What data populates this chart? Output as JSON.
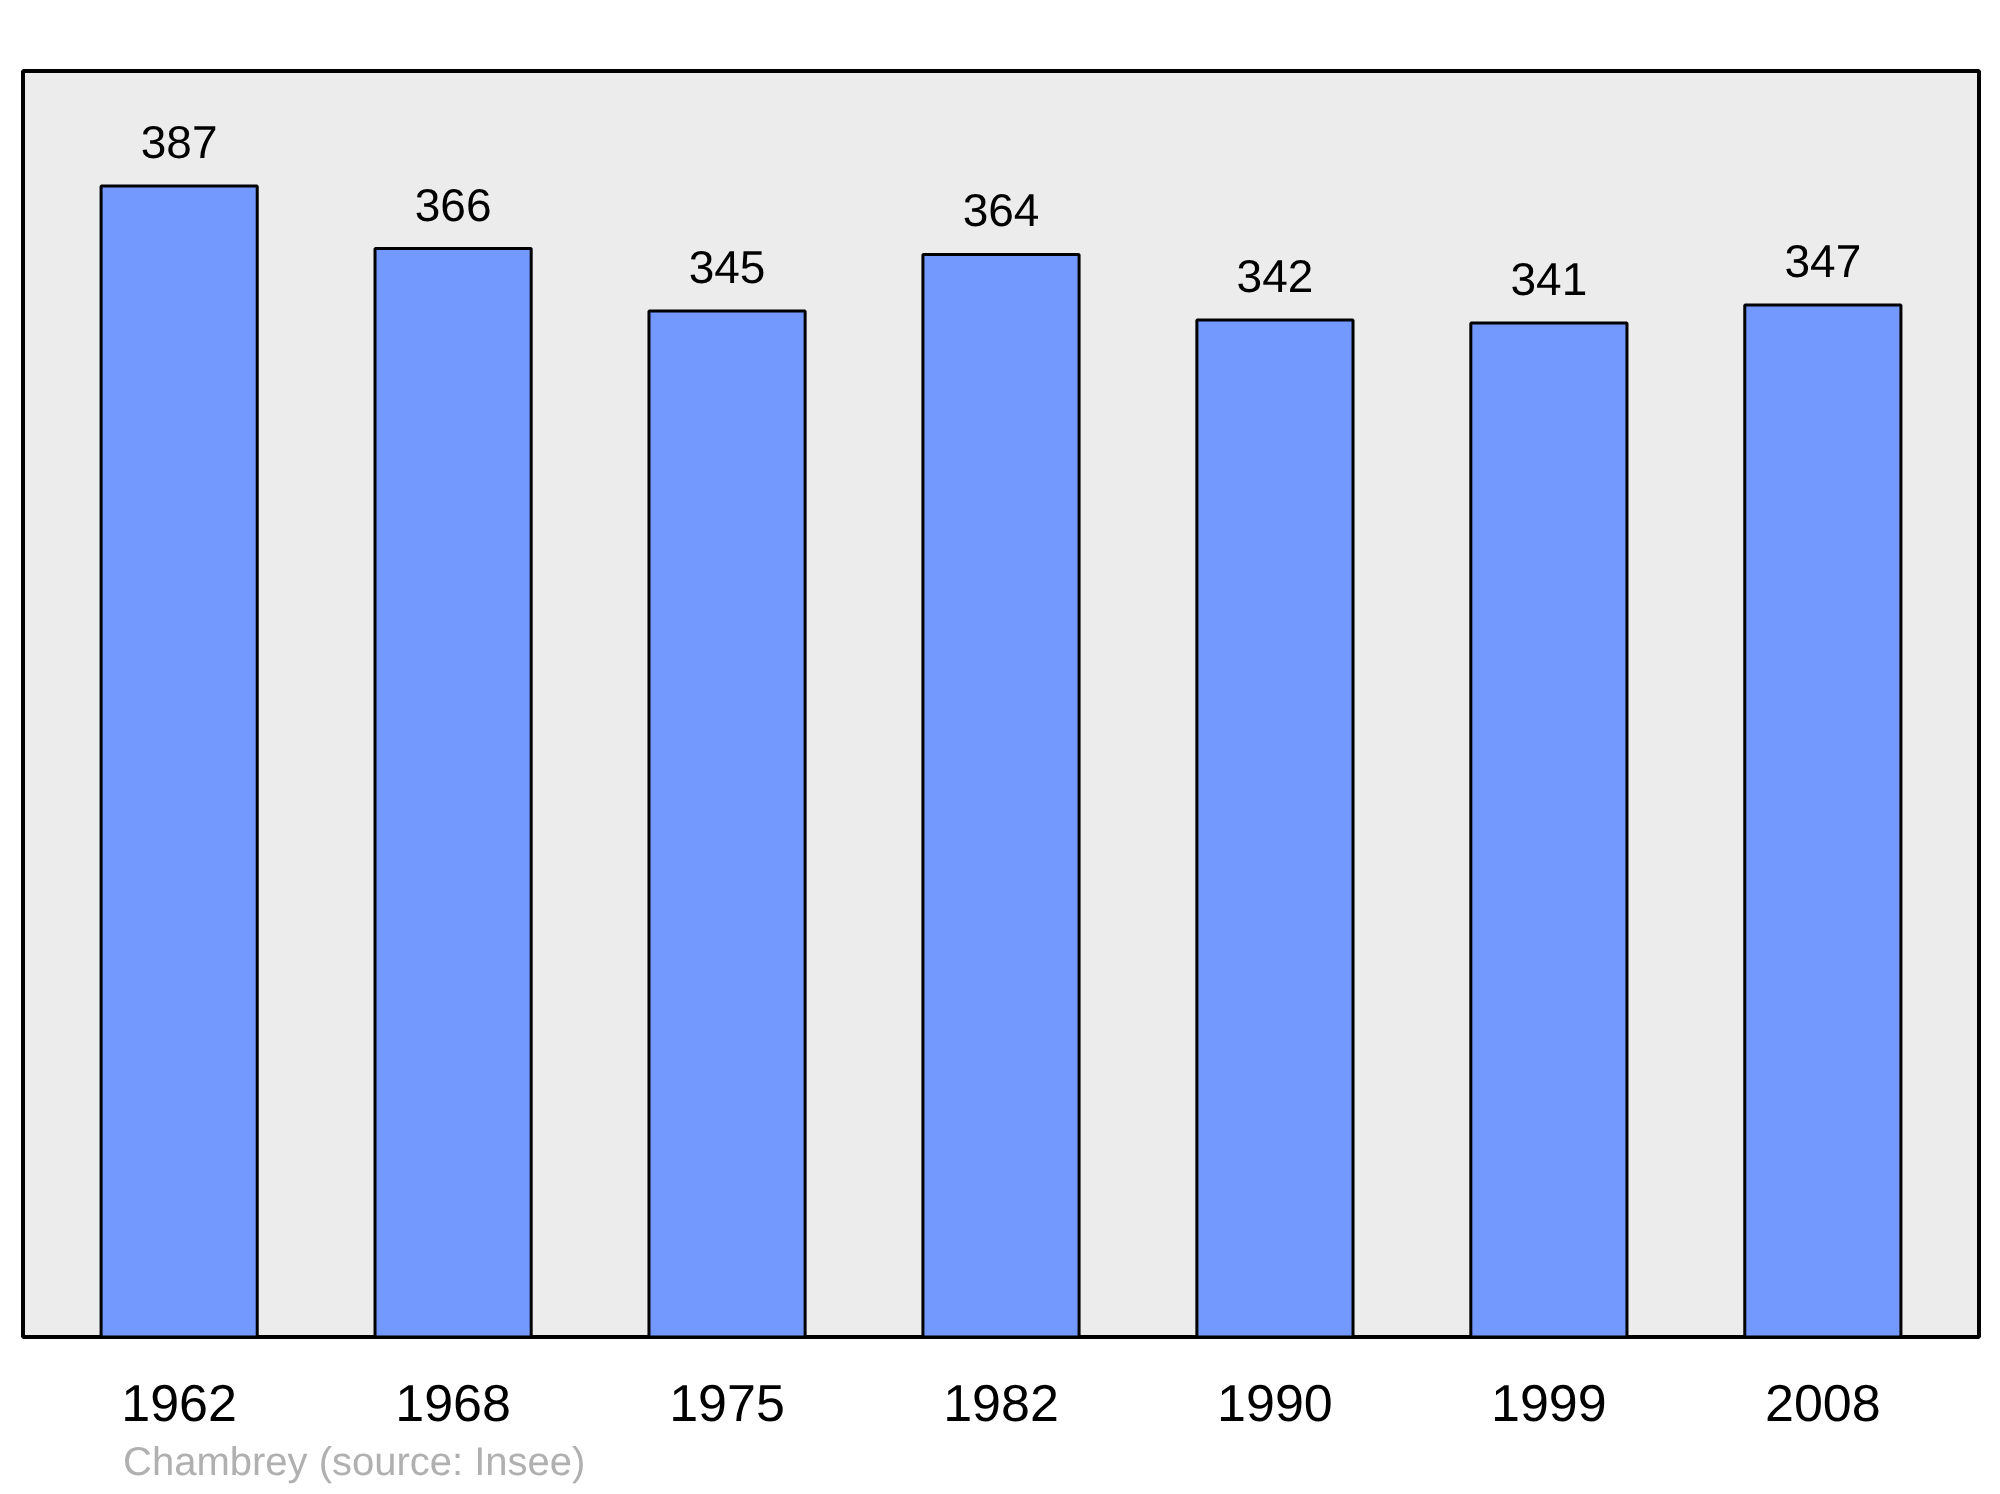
{
  "chart_data": {
    "type": "bar",
    "categories": [
      "1962",
      "1968",
      "1975",
      "1982",
      "1990",
      "1999",
      "2008"
    ],
    "values": [
      387,
      366,
      345,
      364,
      342,
      341,
      347
    ],
    "color": "#7399ff",
    "data_labels": true,
    "annotations": [
      "Chambrey    (source: Insee)"
    ]
  }
}
